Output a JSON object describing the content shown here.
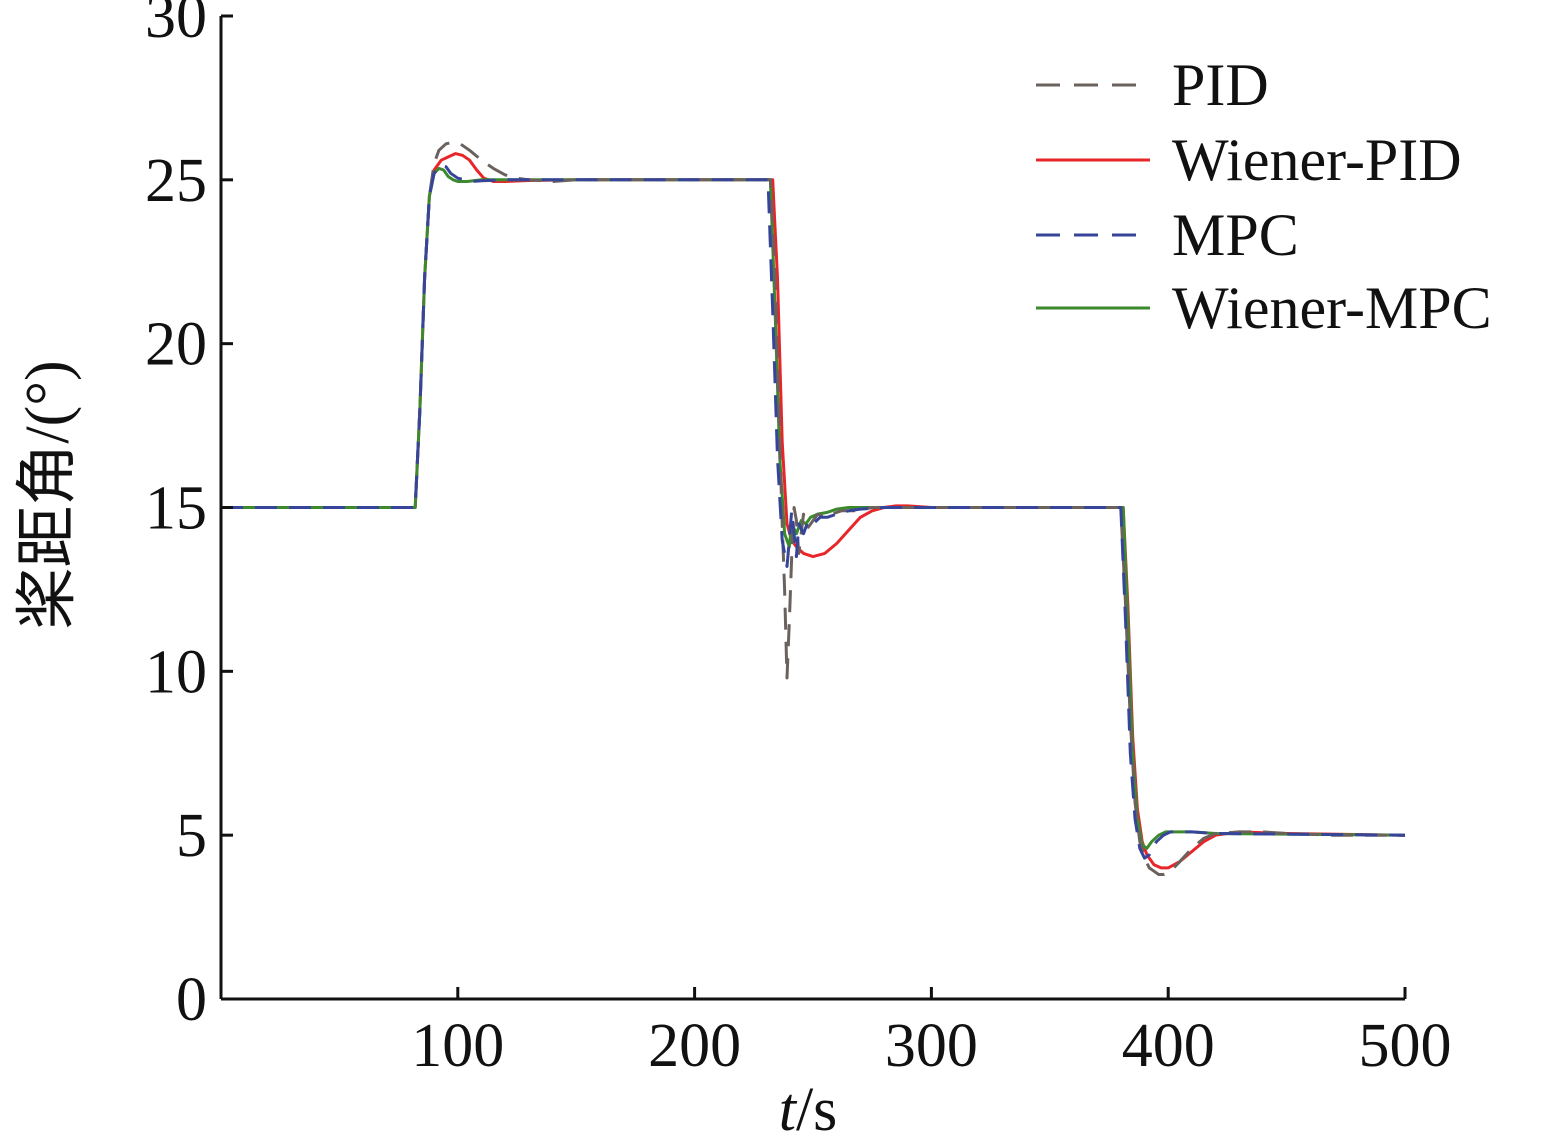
{
  "chart_data": {
    "type": "line",
    "title": "",
    "xlabel_italic": "t",
    "xlabel_rest": "/s",
    "ylabel": "桨距角/(°)",
    "xlim": [
      0,
      500
    ],
    "ylim": [
      0,
      30
    ],
    "xticks": [
      100,
      200,
      300,
      400,
      500
    ],
    "yticks": [
      0,
      5,
      10,
      15,
      20,
      25,
      30
    ],
    "grid": false,
    "legend_position": "top-right",
    "series": [
      {
        "name": "PID",
        "color": "#6b625e",
        "dash": "dashed",
        "x": [
          0,
          82,
          84,
          86,
          88,
          90,
          92,
          95,
          98,
          101,
          105,
          110,
          115,
          120,
          125,
          130,
          140,
          150,
          200,
          232,
          234,
          236,
          237,
          238,
          239,
          240,
          241,
          242,
          243,
          244,
          245,
          246,
          248,
          250,
          252,
          255,
          258,
          262,
          268,
          275,
          285,
          300,
          380,
          382,
          384,
          386,
          388,
          390,
          392,
          394,
          396,
          398,
          401,
          405,
          410,
          415,
          420,
          430,
          440,
          450,
          470,
          500
        ],
        "y": [
          15,
          15,
          18,
          22,
          24.5,
          25.5,
          25.9,
          26.1,
          26.15,
          26.1,
          25.9,
          25.6,
          25.35,
          25.15,
          25.05,
          25.0,
          24.95,
          25.0,
          25.0,
          25.0,
          22,
          17,
          14.5,
          12.5,
          9.8,
          11.5,
          13.5,
          15.0,
          14.6,
          13.6,
          14.2,
          14.8,
          14.4,
          14.6,
          14.8,
          14.7,
          14.8,
          14.9,
          14.9,
          15.0,
          15.0,
          15.0,
          15.0,
          12.0,
          8.5,
          6.0,
          4.8,
          4.3,
          4.0,
          3.9,
          3.8,
          3.8,
          3.9,
          4.2,
          4.6,
          4.9,
          5.05,
          5.1,
          5.1,
          5.05,
          5.0,
          5.0
        ]
      },
      {
        "name": "Wiener-PID",
        "color": "#e8262a",
        "dash": "solid",
        "x": [
          0,
          82,
          84,
          86,
          88,
          90,
          93,
          96,
          99,
          102,
          105,
          108,
          111,
          115,
          120,
          130,
          150,
          200,
          233,
          235,
          237,
          239,
          241,
          243,
          246,
          250,
          255,
          260,
          265,
          270,
          275,
          280,
          285,
          290,
          300,
          381,
          383,
          385,
          387,
          389,
          391,
          394,
          397,
          400,
          405,
          410,
          415,
          420,
          430,
          450,
          500
        ],
        "y": [
          15,
          15,
          18,
          22,
          24.5,
          25.3,
          25.6,
          25.7,
          25.8,
          25.75,
          25.6,
          25.3,
          25.05,
          24.95,
          24.95,
          24.98,
          25.0,
          25.0,
          25.0,
          22,
          17,
          14.5,
          14.0,
          13.8,
          13.6,
          13.5,
          13.6,
          13.9,
          14.3,
          14.7,
          14.9,
          15.0,
          15.05,
          15.05,
          15.0,
          15.0,
          12,
          8,
          5.8,
          4.8,
          4.4,
          4.1,
          4.0,
          4.0,
          4.2,
          4.5,
          4.8,
          5.0,
          5.1,
          5.05,
          5.0
        ]
      },
      {
        "name": "MPC",
        "color": "#36459a",
        "dash": "dashed",
        "x": [
          0,
          82,
          84,
          86,
          88,
          90,
          93,
          95,
          97,
          100,
          103,
          106,
          110,
          120,
          150,
          200,
          231,
          233,
          235,
          237,
          239,
          240,
          241,
          243,
          244,
          246,
          248,
          250,
          253,
          256,
          260,
          265,
          270,
          280,
          300,
          380,
          382,
          384,
          386,
          388,
          390,
          392,
          395,
          398,
          401,
          405,
          410,
          420,
          500
        ],
        "y": [
          15,
          15,
          18,
          22,
          24.5,
          25.2,
          25.45,
          25.4,
          25.2,
          25.05,
          25.0,
          24.95,
          24.97,
          25.0,
          25.0,
          25.0,
          25.0,
          21,
          16.5,
          14.0,
          13.2,
          14.0,
          14.9,
          13.5,
          14.5,
          14.2,
          14.6,
          14.5,
          14.7,
          14.7,
          14.8,
          14.9,
          14.95,
          15.0,
          15.0,
          15.0,
          11.5,
          7.5,
          5.5,
          4.6,
          4.3,
          4.4,
          4.8,
          5.0,
          5.1,
          5.1,
          5.1,
          5.05,
          5.0
        ]
      },
      {
        "name": "Wiener-MPC",
        "color": "#3d8a2e",
        "dash": "solid",
        "x": [
          0,
          82,
          84,
          86,
          88,
          90,
          92,
          94,
          96,
          98,
          100,
          104,
          110,
          120,
          150,
          200,
          232,
          234,
          236,
          238,
          240,
          241,
          243,
          245,
          247,
          249,
          252,
          256,
          260,
          265,
          270,
          280,
          300,
          381,
          383,
          385,
          387,
          389,
          391,
          393,
          396,
          399,
          403,
          410,
          420,
          500
        ],
        "y": [
          15,
          15,
          18,
          22,
          24.5,
          25.2,
          25.35,
          25.3,
          25.1,
          25.0,
          24.95,
          24.95,
          25.0,
          25.0,
          25.0,
          25.0,
          25.0,
          21,
          16.5,
          14.2,
          13.8,
          14.5,
          14.2,
          14.6,
          14.5,
          14.7,
          14.8,
          14.85,
          14.95,
          15.0,
          15.0,
          15.0,
          15.0,
          15.0,
          11.5,
          7.5,
          5.5,
          4.7,
          4.6,
          4.8,
          5.0,
          5.1,
          5.1,
          5.1,
          5.05,
          5.0
        ]
      }
    ]
  }
}
